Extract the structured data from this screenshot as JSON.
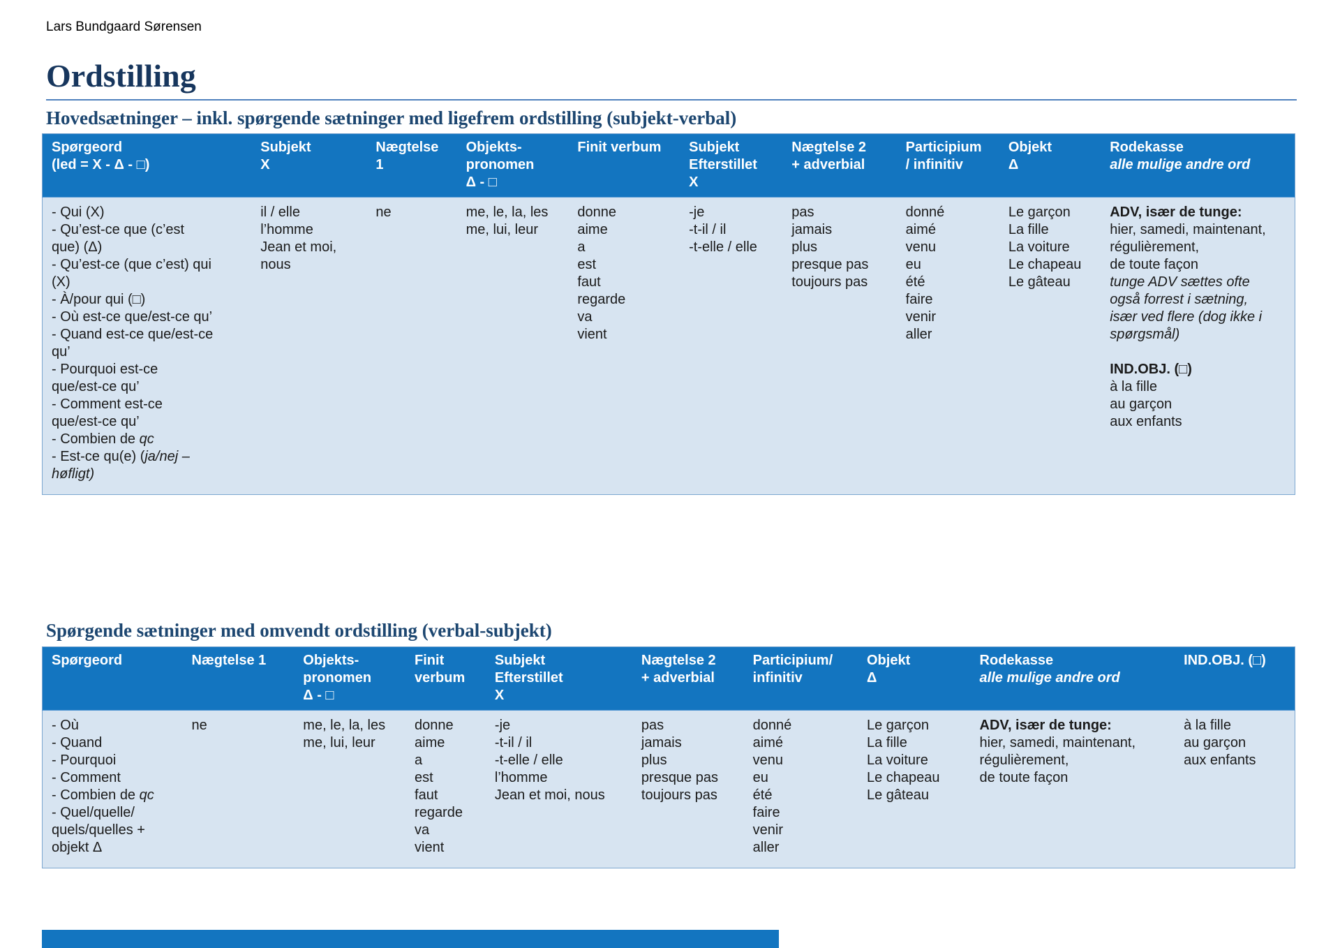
{
  "page": {
    "author": "Lars Bundgaard Sørensen",
    "title": "Ordstilling"
  },
  "colors": {
    "table_header_background": "#1375C0",
    "table_body_background": "#D7E4F1",
    "title_text": "#17365D",
    "section_heading_text": "#1C4670",
    "title_rule": "#4F81BD",
    "table_border": "#7BA6D0"
  },
  "sections": [
    {
      "heading": "Hovedsætninger – inkl. spørgende sætninger med ligefrem ordstilling (subjekt-verbal)",
      "table": {
        "col_widths_pct": [
          16.7,
          9.2,
          7.2,
          8.9,
          8.9,
          8.2,
          9.1,
          8.2,
          8.1,
          15.5
        ],
        "header": [
          [
            "Spørgeord",
            "(led = X - Δ - □)"
          ],
          [
            "Subjekt",
            "X"
          ],
          [
            "Nægtelse",
            "1"
          ],
          [
            "Objekts-",
            "pronomen",
            "Δ - □"
          ],
          [
            "Finit verbum"
          ],
          [
            "Subjekt",
            "Efterstillet",
            "X"
          ],
          [
            "Nægtelse 2",
            "+ adverbial"
          ],
          [
            "Participium",
            "/ infinitiv"
          ],
          [
            "Objekt",
            "Δ"
          ],
          [
            "Rodekasse",
            [
              {
                "t": "alle mulige andre ord",
                "s": "i"
              }
            ]
          ]
        ],
        "body": [
          [
            "- Qui (X)",
            "- Qu’est-ce que (c’est",
            "que) (Δ)",
            "- Qu’est-ce (que c’est) qui",
            "(X)",
            "- À/pour qui (□)",
            "- Où est-ce que/est-ce qu’",
            "- Quand est-ce que/est-ce",
            "qu’",
            "- Pourquoi est-ce",
            "que/est-ce qu’",
            "- Comment est-ce",
            "que/est-ce qu’",
            [
              {
                "t": "- Combien de "
              },
              {
                "t": "qc",
                "s": "i"
              }
            ],
            [
              {
                "t": "- Est-ce qu(e) ("
              },
              {
                "t": "ja/nej –",
                "s": "i"
              }
            ],
            [
              {
                "t": "høfligt)",
                "s": "i"
              }
            ]
          ],
          [
            "il / elle",
            "l’homme",
            "Jean et moi,",
            "nous"
          ],
          [
            "ne"
          ],
          [
            "me, le, la, les",
            "me, lui, leur"
          ],
          [
            "donne",
            "aime",
            "a",
            "est",
            "faut",
            "regarde",
            "va",
            "vient"
          ],
          [
            "-je",
            "-t-il / il",
            "-t-elle / elle"
          ],
          [
            "pas",
            "jamais",
            "plus",
            "presque pas",
            "toujours pas"
          ],
          [
            "donné",
            "aimé",
            "venu",
            "eu",
            "été",
            "faire",
            "venir",
            "aller"
          ],
          [
            "Le garçon",
            "La fille",
            "La voiture",
            "Le chapeau",
            "Le gâteau"
          ],
          [
            [
              {
                "t": "ADV, især de tunge:",
                "s": "b"
              }
            ],
            "hier, samedi, maintenant,",
            "régulièrement,",
            "de toute façon",
            [
              {
                "t": "tunge ADV sættes ofte",
                "s": "i"
              }
            ],
            [
              {
                "t": "også forrest i sætning,",
                "s": "i"
              }
            ],
            [
              {
                "t": "især ved flere (dog ikke i",
                "s": "i"
              }
            ],
            [
              {
                "t": "spørgsmål)",
                "s": "i"
              }
            ],
            "",
            [
              {
                "t": "IND.OBJ. (□)",
                "s": "b"
              }
            ],
            "à la fille",
            "au garçon",
            "aux enfants"
          ]
        ]
      }
    },
    {
      "heading": "Spørgende sætninger med omvendt ordstilling (verbal-subjekt)",
      "table": {
        "col_widths_pct": [
          11.2,
          8.9,
          8.9,
          6.4,
          11.7,
          8.9,
          9.1,
          9.0,
          16.3,
          9.6
        ],
        "header": [
          [
            "Spørgeord"
          ],
          [
            "Nægtelse 1"
          ],
          [
            "Objekts-",
            "pronomen",
            "Δ - □"
          ],
          [
            "Finit",
            "verbum"
          ],
          [
            "Subjekt",
            "Efterstillet",
            "X"
          ],
          [
            "Nægtelse 2",
            "+ adverbial"
          ],
          [
            "Participium/",
            "infinitiv"
          ],
          [
            "Objekt",
            "Δ"
          ],
          [
            "Rodekasse",
            [
              {
                "t": "alle mulige andre ord",
                "s": "i"
              }
            ]
          ],
          [
            "IND.OBJ. (□)"
          ]
        ],
        "body": [
          [
            "- Où",
            "- Quand",
            "- Pourquoi",
            "- Comment",
            [
              {
                "t": "- Combien de "
              },
              {
                "t": "qc",
                "s": "i"
              }
            ],
            "- Quel/quelle/",
            "quels/quelles +",
            "objekt Δ"
          ],
          [
            "ne"
          ],
          [
            "me, le, la, les",
            "me, lui, leur"
          ],
          [
            "donne",
            "aime",
            "a",
            "est",
            "faut",
            "regarde",
            "va",
            "vient"
          ],
          [
            "-je",
            "-t-il / il",
            "-t-elle / elle",
            "l’homme",
            "Jean et moi, nous"
          ],
          [
            "pas",
            "jamais",
            "plus",
            "presque pas",
            "toujours pas"
          ],
          [
            "donné",
            "aimé",
            "venu",
            "eu",
            "été",
            "faire",
            "venir",
            "aller"
          ],
          [
            "Le garçon",
            "La fille",
            "La voiture",
            "Le chapeau",
            "Le gâteau"
          ],
          [
            [
              {
                "t": "ADV, især de tunge:",
                "s": "b"
              }
            ],
            "hier, samedi, maintenant,",
            "régulièrement,",
            "de toute façon"
          ],
          [
            "à la fille",
            "au garçon",
            "aux enfants"
          ]
        ]
      }
    }
  ]
}
